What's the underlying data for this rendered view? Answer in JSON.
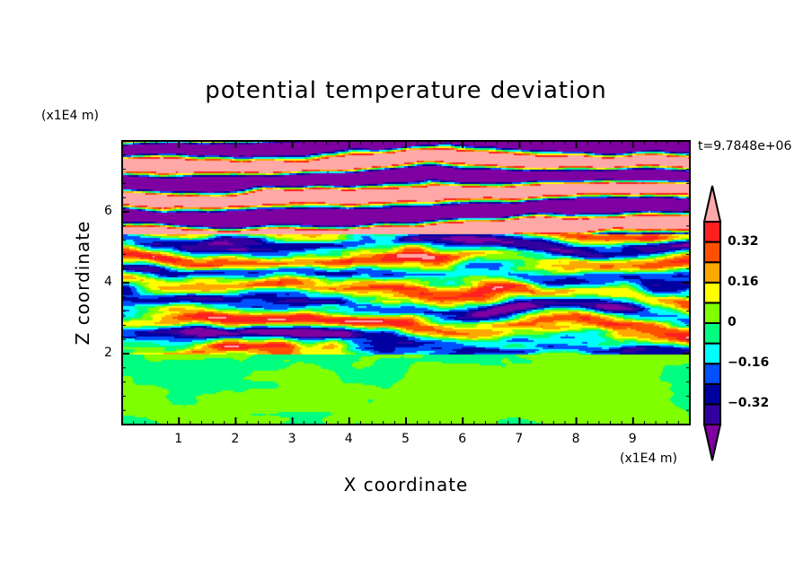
{
  "title": "potential temperature deviation",
  "time_label": "t=9.7848e+06",
  "chart_data": {
    "type": "heatmap",
    "title": "potential temperature deviation",
    "xlabel": "X coordinate",
    "ylabel": "Z coordinate",
    "x_unit": "(x1E4 m)",
    "y_unit": "(x1E4 m)",
    "xlim": [
      0,
      10
    ],
    "ylim": [
      0,
      8
    ],
    "x_ticks": [
      "1",
      "2",
      "3",
      "4",
      "5",
      "6",
      "7",
      "8",
      "9"
    ],
    "y_ticks": [
      "2",
      "4",
      "6"
    ],
    "colorbar": {
      "levels": [
        -0.4,
        -0.32,
        -0.24,
        -0.16,
        -0.08,
        0,
        0.08,
        0.16,
        0.24,
        0.32,
        0.4
      ],
      "labels": [
        "0.32",
        "0.16",
        "0",
        "−0.16",
        "−0.32"
      ],
      "label_values": [
        0.32,
        0.16,
        0,
        -0.16,
        -0.32
      ],
      "colors": [
        "#7f00a0",
        "#3300a0",
        "#0000a0",
        "#0050ff",
        "#00ffff",
        "#00ff80",
        "#80ff00",
        "#ffff00",
        "#ffa800",
        "#ff5000",
        "#ff2020",
        "#ffa8a8"
      ],
      "extend": "both"
    },
    "description_regions": [
      {
        "z_range": [
          0,
          2
        ],
        "pattern": "near-zero values, mix of -0.08..0.08"
      },
      {
        "z_range": [
          2,
          5.5
        ],
        "pattern": "turbulent mixed layer, full range"
      },
      {
        "z_range": [
          5.5,
          8
        ],
        "pattern": "alternating bands above 0.4 and below -0.4"
      }
    ]
  }
}
